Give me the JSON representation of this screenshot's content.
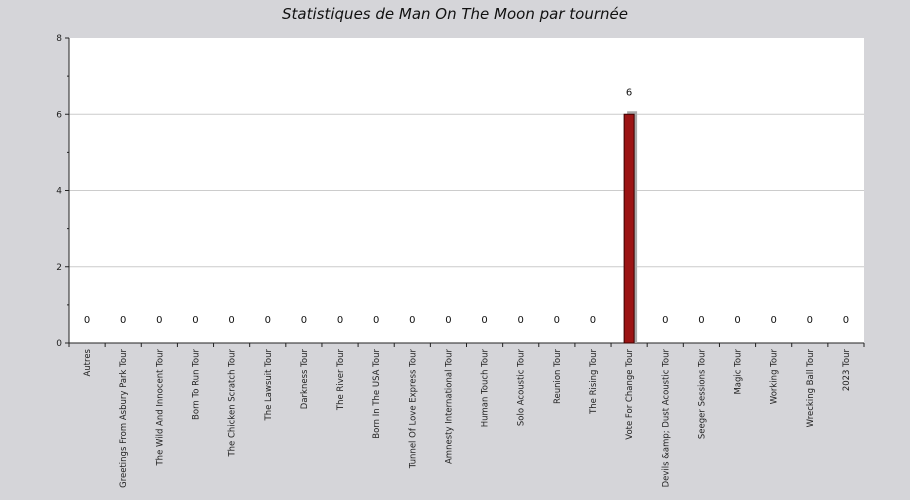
{
  "chart_data": {
    "type": "bar",
    "title": "Statistiques de Man On The Moon par tournée",
    "xlabel": "",
    "ylabel": "",
    "ylim": [
      0,
      8
    ],
    "yticks": [
      0,
      2,
      4,
      6,
      8
    ],
    "grid": true,
    "categories": [
      "Autres",
      "Greetings From Asbury Park Tour",
      "The Wild And Innocent Tour",
      "Born To Run Tour",
      "The Chicken Scratch Tour",
      "The Lawsuit Tour",
      "Darkness Tour",
      "The River Tour",
      "Born In The USA Tour",
      "Tunnel Of Love Express Tour",
      "Amnesty International Tour",
      "Human Touch Tour",
      "Solo Acoustic Tour",
      "Reunion Tour",
      "The Rising Tour",
      "Vote For Change Tour",
      "Devils &amp; Dust Acoustic Tour",
      "Seeger Sessions Tour",
      "Magic Tour",
      "Working Tour",
      "Wrecking Ball Tour",
      "2023 Tour"
    ],
    "values": [
      0,
      0,
      0,
      0,
      0,
      0,
      0,
      0,
      0,
      0,
      0,
      0,
      0,
      0,
      0,
      6,
      0,
      0,
      0,
      0,
      0,
      0
    ],
    "colors": {
      "bar": "#9b1414",
      "shadow": "#aaaaaa",
      "plot_bg": "#ffffff",
      "page_bg": "#d5d5d9",
      "grid": "#cccccc"
    }
  }
}
